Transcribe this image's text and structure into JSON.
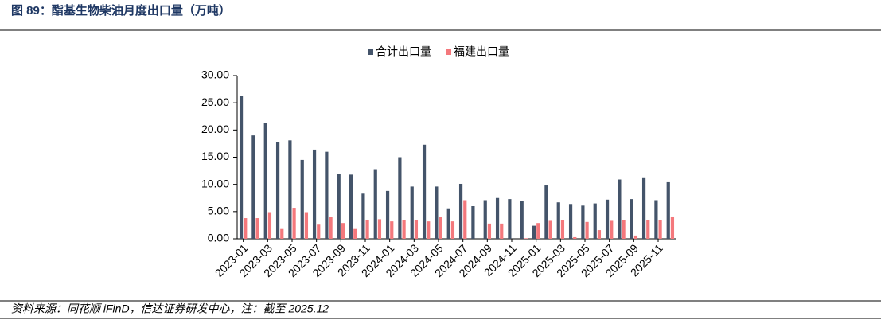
{
  "chart_data": {
    "type": "bar",
    "title": "图 89：酯基生物柴油月度出口量（万吨）",
    "source": "资料来源：同花顺 iFinD，信达证券研发中心，注：截至 2025.12",
    "categories": [
      "2023-01",
      null,
      "2023-03",
      null,
      "2023-05",
      null,
      "2023-07",
      null,
      "2023-09",
      null,
      "2023-11",
      null,
      "2024-01",
      null,
      "2024-03",
      null,
      "2024-05",
      null,
      "2024-07",
      null,
      "2024-09",
      null,
      "2024-11",
      null,
      "2025-01",
      null,
      "2025-03",
      null,
      "2025-05",
      null,
      "2025-07",
      null,
      "2025-09",
      null,
      "2025-11",
      null
    ],
    "series": [
      {
        "name": "合计出口量",
        "color": "#44546a",
        "values": [
          26.3,
          19.0,
          21.3,
          17.8,
          18.1,
          14.5,
          16.4,
          16.0,
          11.9,
          11.8,
          8.3,
          12.8,
          8.8,
          15.0,
          9.6,
          17.3,
          9.6,
          5.6,
          10.1,
          6.0,
          7.1,
          7.5,
          7.3,
          7.0,
          2.4,
          9.8,
          6.7,
          6.4,
          6.1,
          6.5,
          7.2,
          10.9,
          7.3,
          11.3,
          7.1,
          10.4
        ]
      },
      {
        "name": "福建出口量",
        "color": "#f4787c",
        "values": [
          3.8,
          3.8,
          4.9,
          1.8,
          5.7,
          4.9,
          2.6,
          4.0,
          2.9,
          1.8,
          3.4,
          3.6,
          3.2,
          3.4,
          3.4,
          3.2,
          4.0,
          3.2,
          7.1,
          0,
          2.8,
          2.8,
          0,
          0.1,
          2.9,
          3.3,
          3.4,
          0.3,
          3.1,
          1.6,
          3.3,
          3.4,
          0.6,
          3.4,
          3.4,
          4.1
        ]
      }
    ],
    "ylim": [
      0,
      30
    ],
    "yticks": [
      {
        "value": 0,
        "label": "0.00"
      },
      {
        "value": 5,
        "label": "5.00"
      },
      {
        "value": 10,
        "label": "10.00"
      },
      {
        "value": 15,
        "label": "15.00"
      },
      {
        "value": 20,
        "label": "20.00"
      },
      {
        "value": 25,
        "label": "25.00"
      },
      {
        "value": 30,
        "label": "30.00"
      }
    ],
    "grid": false
  }
}
